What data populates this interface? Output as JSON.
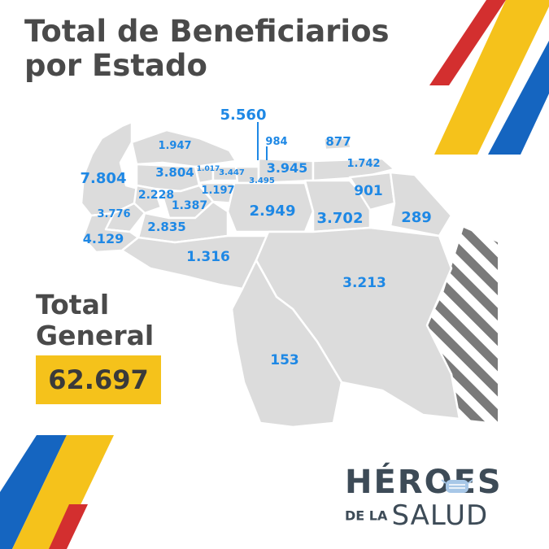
{
  "title": {
    "line1": "Total de Beneficiarios",
    "line2": "por Estado"
  },
  "states": {
    "zulia": "7.804",
    "falcon": "1.947",
    "lara": "3.804",
    "yaracuy": "1.017",
    "carabobo": "3.447",
    "aragua": "3.495",
    "distrito_capital": "5.560",
    "la_guaira": "984",
    "miranda": "3.945",
    "nueva_esparta": "877",
    "sucre": "1.742",
    "trujillo": "2.228",
    "cojedes": "1.197",
    "portuguesa": "1.387",
    "merida": "3.776",
    "barinas": "2.835",
    "guarico": "2.949",
    "anzoategui": "3.702",
    "monagas": "901",
    "delta_amacuro": "289",
    "tachira": "4.129",
    "apure": "1.316",
    "bolivar": "3.213",
    "amazonas": "153"
  },
  "total": {
    "label_line1": "Total",
    "label_line2": "General",
    "value": "62.697"
  },
  "logo": {
    "word_top": "HÉROES",
    "word_small": "DE LA",
    "word_big": "SALUD"
  },
  "colors": {
    "title_text": "#4a4a4a",
    "map_fill": "#dcdcdc",
    "map_border": "#ffffff",
    "value_text": "#1e88e5",
    "total_box": "#f5c21b",
    "flag_yellow": "#f5c21b",
    "flag_blue": "#1565c0",
    "flag_red": "#d32f2f",
    "logo_text": "#3d4b57",
    "hatch": "#7a7a7a"
  },
  "icons": [
    "face-mask-icon"
  ]
}
